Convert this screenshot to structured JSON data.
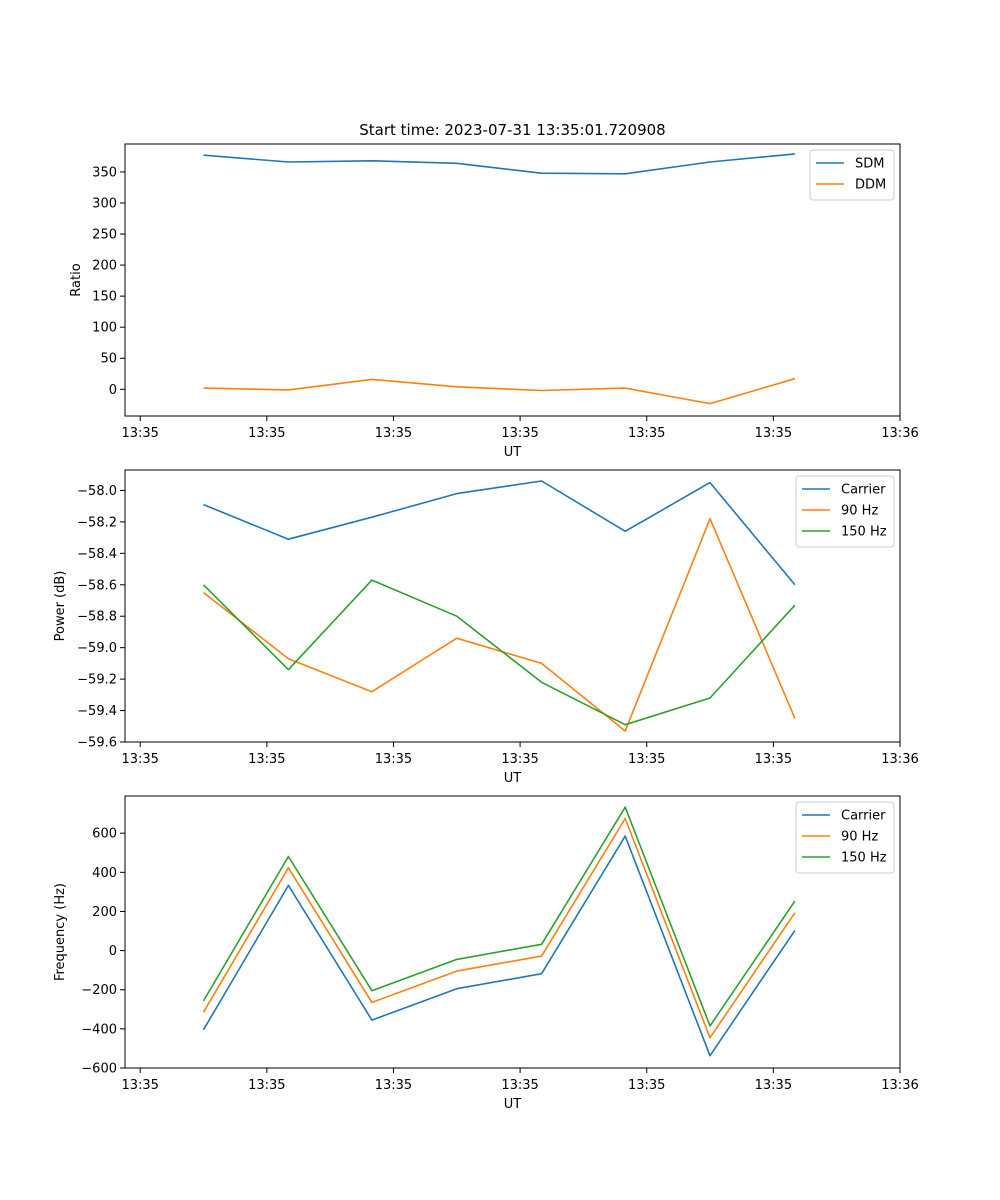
{
  "figure": {
    "title": "Start time: 2023-07-31 13:35:01.720908"
  },
  "colors": {
    "blue": "#1f77b4",
    "orange": "#ff7f0e",
    "green": "#2ca02c"
  },
  "chart_data": [
    {
      "type": "line",
      "title": "Start time: 2023-07-31 13:35:01.720908",
      "xlabel": "UT",
      "ylabel": "Ratio",
      "x_ticks": [
        "13:35",
        "13:35",
        "13:35",
        "13:35",
        "13:35",
        "13:35",
        "13:36"
      ],
      "x_tick_positions": [
        0,
        1,
        2,
        3,
        4,
        5,
        6
      ],
      "xlim": [
        -0.12,
        6.0
      ],
      "x": [
        0.5,
        1.17,
        1.83,
        2.5,
        3.17,
        3.83,
        4.5,
        5.17
      ],
      "ylim": [
        -43,
        395
      ],
      "y_ticks": [
        0,
        50,
        100,
        150,
        200,
        250,
        300,
        350
      ],
      "y_tick_labels": [
        "0",
        "50",
        "100",
        "150",
        "200",
        "250",
        "300",
        "350"
      ],
      "legend_position": "upper right",
      "series": [
        {
          "name": "SDM",
          "color": "#1f77b4",
          "values": [
            377,
            366,
            368,
            364,
            348,
            347,
            366,
            379
          ]
        },
        {
          "name": "DDM",
          "color": "#ff7f0e",
          "values": [
            2,
            -1,
            16,
            4,
            -2,
            2,
            -23,
            17
          ]
        }
      ]
    },
    {
      "type": "line",
      "xlabel": "UT",
      "ylabel": "Power (dB)",
      "x_ticks": [
        "13:35",
        "13:35",
        "13:35",
        "13:35",
        "13:35",
        "13:35",
        "13:36"
      ],
      "x_tick_positions": [
        0,
        1,
        2,
        3,
        4,
        5,
        6
      ],
      "xlim": [
        -0.12,
        6.0
      ],
      "x": [
        0.5,
        1.17,
        1.83,
        2.5,
        3.17,
        3.83,
        4.5,
        5.17
      ],
      "ylim": [
        -59.6,
        -57.87
      ],
      "y_ticks": [
        -59.6,
        -59.4,
        -59.2,
        -59.0,
        -58.8,
        -58.6,
        -58.4,
        -58.2,
        -58.0
      ],
      "y_tick_labels": [
        "−59.6",
        "−59.4",
        "−59.2",
        "−59.0",
        "−58.8",
        "−58.6",
        "−58.4",
        "−58.2",
        "−58.0"
      ],
      "legend_position": "upper right",
      "series": [
        {
          "name": "Carrier",
          "color": "#1f77b4",
          "values": [
            -58.09,
            -58.31,
            -58.17,
            -58.02,
            -57.94,
            -58.26,
            -57.95,
            -58.6
          ]
        },
        {
          "name": "90 Hz",
          "color": "#ff7f0e",
          "values": [
            -58.65,
            -59.07,
            -59.28,
            -58.94,
            -59.1,
            -59.53,
            -58.18,
            -59.45
          ]
        },
        {
          "name": "150 Hz",
          "color": "#2ca02c",
          "values": [
            -58.6,
            -59.14,
            -58.57,
            -58.8,
            -59.22,
            -59.49,
            -59.32,
            -58.73
          ]
        }
      ]
    },
    {
      "type": "line",
      "xlabel": "UT",
      "ylabel": "Frequency (Hz)",
      "x_ticks": [
        "13:35",
        "13:35",
        "13:35",
        "13:35",
        "13:35",
        "13:35",
        "13:36"
      ],
      "x_tick_positions": [
        0,
        1,
        2,
        3,
        4,
        5,
        6
      ],
      "xlim": [
        -0.12,
        6.0
      ],
      "x": [
        0.5,
        1.17,
        1.83,
        2.5,
        3.17,
        3.83,
        4.5,
        5.17
      ],
      "ylim": [
        -600,
        790
      ],
      "y_ticks": [
        -600,
        -400,
        -200,
        0,
        200,
        400,
        600
      ],
      "y_tick_labels": [
        "−600",
        "−400",
        "−200",
        "0",
        "200",
        "400",
        "600"
      ],
      "legend_position": "upper right",
      "series": [
        {
          "name": "Carrier",
          "color": "#1f77b4",
          "values": [
            -405,
            333,
            -355,
            -195,
            -118,
            585,
            -537,
            103
          ]
        },
        {
          "name": "90 Hz",
          "color": "#ff7f0e",
          "values": [
            -315,
            423,
            -265,
            -105,
            -28,
            675,
            -445,
            193
          ]
        },
        {
          "name": "150 Hz",
          "color": "#2ca02c",
          "values": [
            -257,
            481,
            -205,
            -45,
            32,
            733,
            -385,
            253
          ]
        }
      ]
    }
  ]
}
